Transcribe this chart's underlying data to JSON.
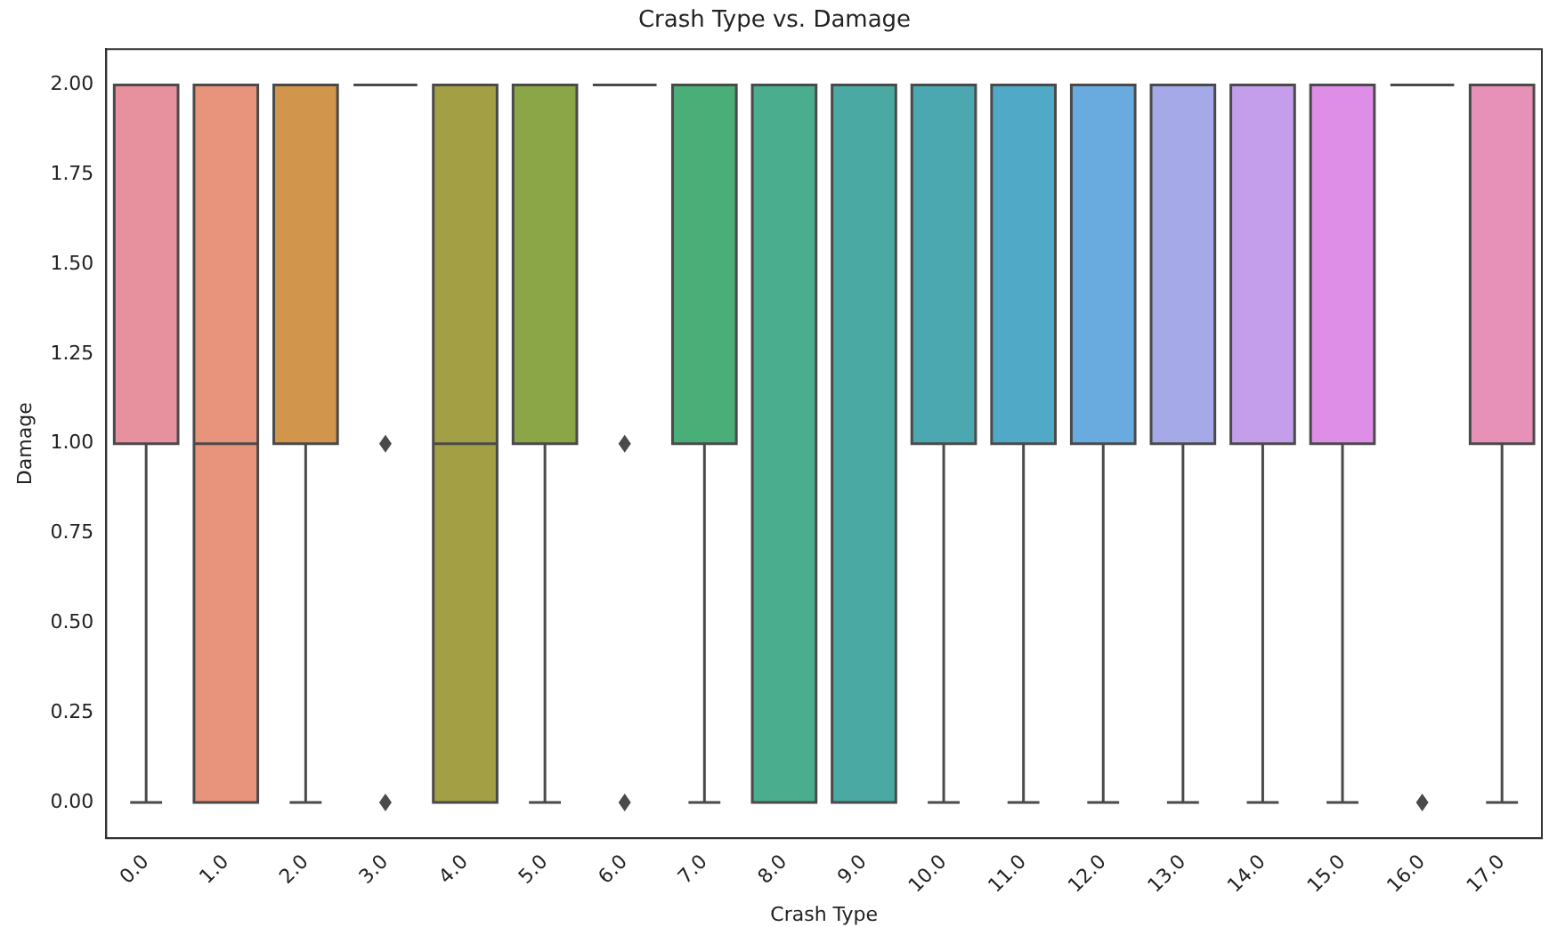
{
  "chart_data": {
    "type": "box",
    "title": "Crash Type vs. Damage",
    "xlabel": "Crash Type",
    "ylabel": "Damage",
    "categories": [
      "0.0",
      "1.0",
      "2.0",
      "3.0",
      "4.0",
      "5.0",
      "6.0",
      "7.0",
      "8.0",
      "9.0",
      "10.0",
      "11.0",
      "12.0",
      "13.0",
      "14.0",
      "15.0",
      "16.0",
      "17.0"
    ],
    "boxes": [
      {
        "low": 0,
        "q1": 1,
        "median": 2,
        "q3": 2,
        "high": 2
      },
      {
        "low": 0,
        "q1": 0,
        "median": 1,
        "q3": 2,
        "high": 2
      },
      {
        "low": 0,
        "q1": 1,
        "median": 2,
        "q3": 2,
        "high": 2
      },
      {
        "low": 2,
        "q1": 2,
        "median": 2,
        "q3": 2,
        "high": 2,
        "outliers": [
          0,
          1
        ]
      },
      {
        "low": 0,
        "q1": 0,
        "median": 1,
        "q3": 2,
        "high": 2
      },
      {
        "low": 0,
        "q1": 1,
        "median": 2,
        "q3": 2,
        "high": 2
      },
      {
        "low": 2,
        "q1": 2,
        "median": 2,
        "q3": 2,
        "high": 2,
        "outliers": [
          0,
          1
        ]
      },
      {
        "low": 0,
        "q1": 1,
        "median": 2,
        "q3": 2,
        "high": 2
      },
      {
        "low": 0,
        "q1": 0,
        "median": 2,
        "q3": 2,
        "high": 2
      },
      {
        "low": 0,
        "q1": 0,
        "median": 2,
        "q3": 2,
        "high": 2
      },
      {
        "low": 0,
        "q1": 1,
        "median": 2,
        "q3": 2,
        "high": 2
      },
      {
        "low": 0,
        "q1": 1,
        "median": 2,
        "q3": 2,
        "high": 2
      },
      {
        "low": 0,
        "q1": 1,
        "median": 2,
        "q3": 2,
        "high": 2
      },
      {
        "low": 0,
        "q1": 1,
        "median": 2,
        "q3": 2,
        "high": 2
      },
      {
        "low": 0,
        "q1": 1,
        "median": 2,
        "q3": 2,
        "high": 2
      },
      {
        "low": 0,
        "q1": 1,
        "median": 2,
        "q3": 2,
        "high": 2
      },
      {
        "low": 2,
        "q1": 2,
        "median": 2,
        "q3": 2,
        "high": 2,
        "outliers": [
          0
        ]
      },
      {
        "low": 0,
        "q1": 1,
        "median": 2,
        "q3": 2,
        "high": 2
      }
    ],
    "colors": [
      "#e8919e",
      "#e8937b",
      "#d1954b",
      "#4a4a4a",
      "#a29f45",
      "#8ba646",
      "#4a4a4a",
      "#4aae78",
      "#4aae8e",
      "#4aa9a2",
      "#4ca8b0",
      "#50a9c6",
      "#6aabdf",
      "#a6a9e8",
      "#c49eea",
      "#df8ee8",
      "#4a4a4a",
      "#e891b8"
    ],
    "ylim": [
      -0.1,
      2.1
    ],
    "yticks": [
      {
        "value": 0,
        "label": "0.00"
      },
      {
        "value": 0.25,
        "label": "0.25"
      },
      {
        "value": 0.5,
        "label": "0.50"
      },
      {
        "value": 0.75,
        "label": "0.75"
      },
      {
        "value": 1,
        "label": "1.00"
      },
      {
        "value": 1.25,
        "label": "1.25"
      },
      {
        "value": 1.5,
        "label": "1.50"
      },
      {
        "value": 1.75,
        "label": "1.75"
      },
      {
        "value": 2,
        "label": "2.00"
      }
    ],
    "grid": false
  }
}
